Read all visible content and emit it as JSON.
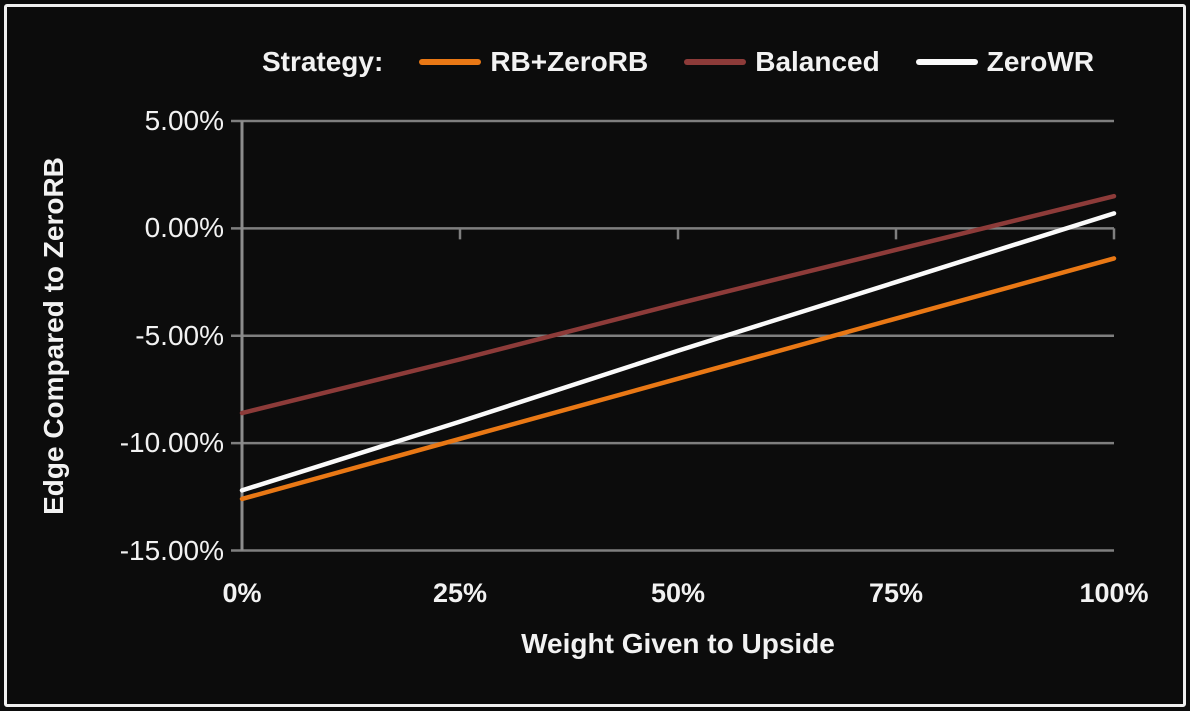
{
  "page": {
    "background_color": "#0c0c0c",
    "frame_color": "#efefef",
    "text_color": "#f2f2f2"
  },
  "legend": {
    "title": "Strategy:",
    "items": [
      {
        "label": "RB+ZeroRB",
        "color": "#e97815"
      },
      {
        "label": "Balanced",
        "color": "#8d3b39"
      },
      {
        "label": "ZeroWR",
        "color": "#fafafa"
      }
    ]
  },
  "chart_data": {
    "type": "line",
    "title": "",
    "xlabel": "Weight Given to Upside",
    "ylabel": "Edge Compared to ZeroRB",
    "x": [
      0,
      25,
      50,
      75,
      100
    ],
    "x_tick_labels": [
      "0%",
      "25%",
      "50%",
      "75%",
      "100%"
    ],
    "y_ticks": [
      5,
      0,
      -5,
      -10,
      -15
    ],
    "y_tick_labels": [
      "5.00%",
      "0.00%",
      "-5.00%",
      "-10.00%",
      "-15.00%"
    ],
    "ylim": [
      -15,
      5
    ],
    "xlim": [
      0,
      100
    ],
    "grid": true,
    "gridline_color": "#7f7f7f",
    "axis_color": "#8c8c8c",
    "legend_position": "top",
    "series": [
      {
        "name": "RB+ZeroRB",
        "color": "#e97815",
        "values": [
          -12.6,
          -9.8,
          -7.0,
          -4.2,
          -1.4
        ]
      },
      {
        "name": "Balanced",
        "color": "#8d3b39",
        "values": [
          -8.6,
          -6.1,
          -3.5,
          -1.0,
          1.5
        ]
      },
      {
        "name": "ZeroWR",
        "color": "#fafafa",
        "values": [
          -12.2,
          -9.0,
          -5.7,
          -2.5,
          0.7
        ]
      }
    ]
  }
}
